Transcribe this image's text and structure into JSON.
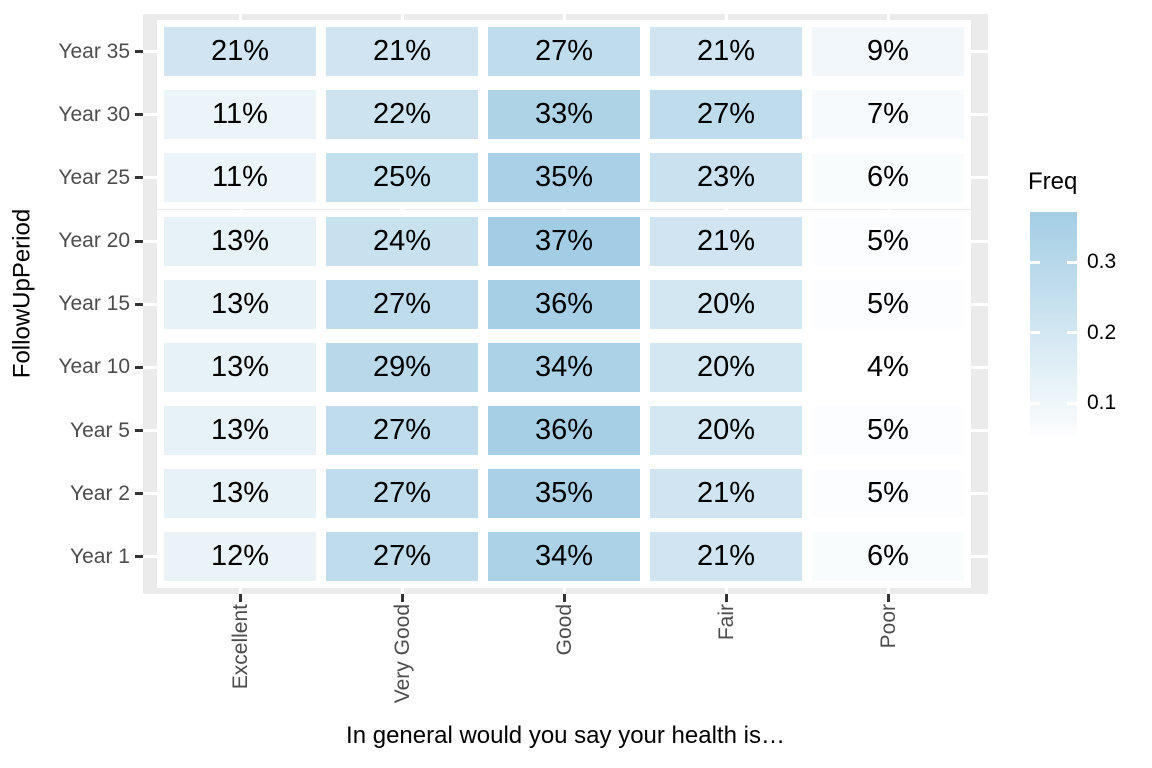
{
  "figure": {
    "background": "#FFFFFF"
  },
  "chart_data": {
    "type": "heatmap",
    "title": "",
    "xlabel": "In general would you say your health is…",
    "ylabel": "FollowUpPeriod",
    "x_categories": [
      "Excellent",
      "Very Good",
      "Good",
      "Fair",
      "Poor"
    ],
    "y_categories_top_to_bottom": [
      "Year 35",
      "Year 30",
      "Year 25",
      "Year 20",
      "Year 15",
      "Year 10",
      "Year 5",
      "Year 2",
      "Year 1"
    ],
    "values_percent": [
      [
        21,
        21,
        27,
        21,
        9
      ],
      [
        11,
        22,
        33,
        27,
        7
      ],
      [
        11,
        25,
        35,
        23,
        6
      ],
      [
        13,
        24,
        37,
        21,
        5
      ],
      [
        13,
        27,
        36,
        20,
        5
      ],
      [
        13,
        29,
        34,
        20,
        4
      ],
      [
        13,
        27,
        36,
        20,
        5
      ],
      [
        13,
        27,
        35,
        21,
        5
      ],
      [
        12,
        27,
        34,
        21,
        6
      ]
    ],
    "cell_label_suffix": "%",
    "legend": {
      "title": "Freq",
      "tick_values": [
        0.3,
        0.2,
        0.1
      ],
      "tick_labels": [
        "0.3",
        "0.2",
        "0.1"
      ],
      "domain": [
        0.04,
        0.37
      ],
      "bar_value_top": 0.371,
      "bar_value_bottom": 0.052,
      "low_color": "#FFFFFF",
      "high_color": "#A3CDE4"
    },
    "colors": {
      "panel_background": "#EBEBEB",
      "gridline": "#FFFFFF",
      "tile_border": "#FFFFFF",
      "axis_text": "#4D4D4D",
      "axis_title": "#000000",
      "tick_mark": "#333333",
      "cell_text": "#000000"
    },
    "layout_hints": {
      "grid": "white gridlines on gray panel",
      "legend_position": "right",
      "x_tick_label_rotation_deg": 90
    }
  }
}
